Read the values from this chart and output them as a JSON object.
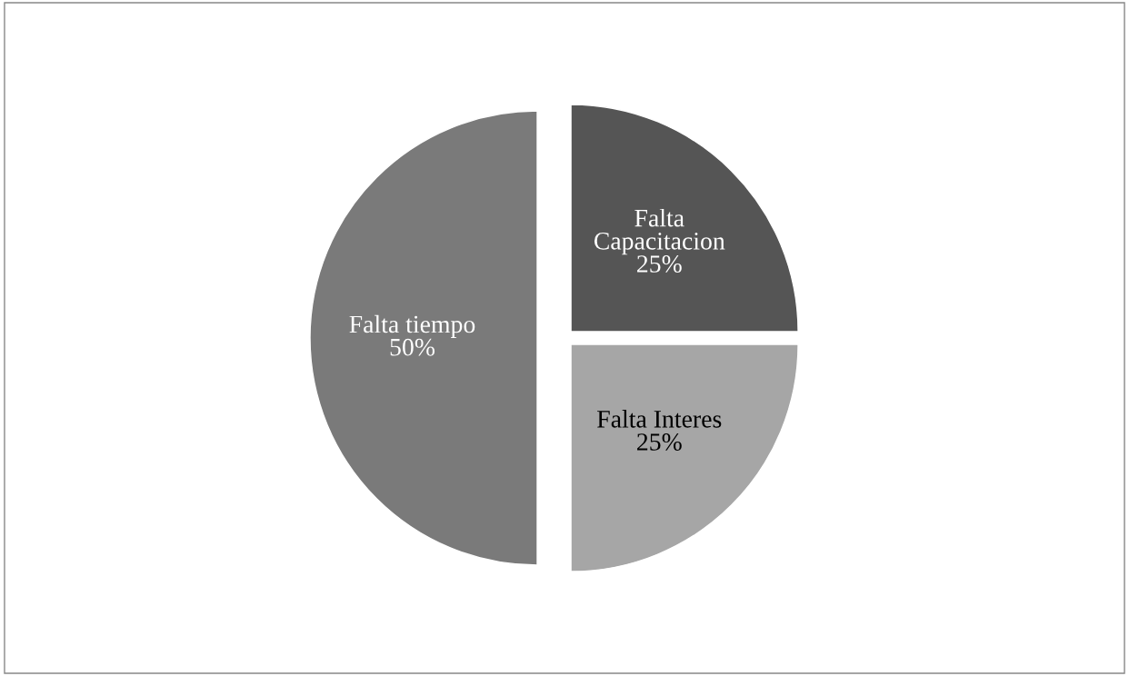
{
  "chart_data": {
    "type": "pie",
    "categories": [
      "Falta Capacitacion",
      "Falta Interes",
      "Falta tiempo"
    ],
    "values": [
      25,
      25,
      50
    ],
    "value_labels": [
      "25%",
      "25%",
      "50%"
    ],
    "colors": [
      "#555555",
      "#a6a6a6",
      "#7a7a7a"
    ],
    "legend": false
  }
}
